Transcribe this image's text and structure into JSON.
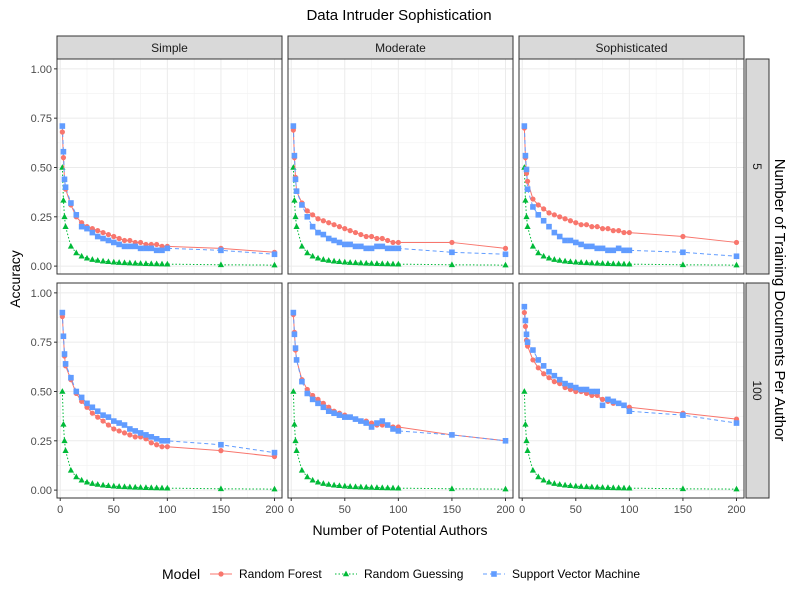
{
  "chart_data": {
    "type": "line",
    "title": "Data Intruder Sophistication",
    "xlabel": "Number of Potential Authors",
    "ylabel": "Accuracy",
    "facet_col_label": "",
    "facet_row_label": "Number of Training Documents Per Author",
    "columns": [
      "Simple",
      "Moderate",
      "Sophisticated"
    ],
    "rows": [
      "5",
      "100"
    ],
    "xlim": [
      -3,
      207
    ],
    "ylim": [
      -0.04,
      1.05
    ],
    "xticks": [
      0,
      50,
      100,
      150,
      200
    ],
    "yticks": [
      0.0,
      0.25,
      0.5,
      0.75,
      1.0
    ],
    "ytick_labels": [
      "0.00",
      "0.25",
      "0.50",
      "0.75",
      "1.00"
    ],
    "grid": true,
    "legend": {
      "title": "Model",
      "position": "bottom",
      "entries": [
        "Random Forest",
        "Random Guessing",
        "Support Vector Machine"
      ]
    },
    "colors": {
      "Random Forest": "#F8766D",
      "Random Guessing": "#00BA38",
      "Support Vector Machine": "#619CFF"
    },
    "x": [
      2,
      3,
      4,
      5,
      10,
      15,
      20,
      25,
      30,
      35,
      40,
      45,
      50,
      55,
      60,
      65,
      70,
      75,
      80,
      85,
      90,
      95,
      100,
      150,
      200
    ],
    "panels": [
      {
        "row": "5",
        "col": "Simple",
        "series": [
          {
            "name": "Random Forest",
            "values": [
              0.68,
              0.55,
              0.44,
              0.39,
              0.31,
              0.25,
              0.22,
              0.2,
              0.19,
              0.18,
              0.17,
              0.16,
              0.15,
              0.14,
              0.13,
              0.13,
              0.12,
              0.12,
              0.11,
              0.11,
              0.11,
              0.1,
              0.1,
              0.09,
              0.07
            ]
          },
          {
            "name": "Support Vector Machine",
            "values": [
              0.71,
              0.58,
              0.44,
              0.4,
              0.32,
              0.26,
              0.2,
              0.19,
              0.17,
              0.15,
              0.14,
              0.13,
              0.12,
              0.11,
              0.1,
              0.1,
              0.1,
              0.09,
              0.09,
              0.09,
              0.08,
              0.08,
              0.09,
              0.08,
              0.06
            ]
          }
        ]
      },
      {
        "row": "5",
        "col": "Moderate",
        "series": [
          {
            "name": "Random Forest",
            "values": [
              0.69,
              0.55,
              0.45,
              0.38,
              0.32,
              0.28,
              0.26,
              0.24,
              0.23,
              0.22,
              0.21,
              0.2,
              0.19,
              0.18,
              0.17,
              0.16,
              0.15,
              0.15,
              0.14,
              0.14,
              0.13,
              0.12,
              0.12,
              0.12,
              0.09
            ]
          },
          {
            "name": "Support Vector Machine",
            "values": [
              0.71,
              0.56,
              0.44,
              0.38,
              0.31,
              0.25,
              0.2,
              0.17,
              0.16,
              0.14,
              0.13,
              0.12,
              0.11,
              0.11,
              0.1,
              0.1,
              0.09,
              0.09,
              0.1,
              0.1,
              0.09,
              0.09,
              0.09,
              0.07,
              0.06
            ]
          }
        ]
      },
      {
        "row": "5",
        "col": "Sophisticated",
        "series": [
          {
            "name": "Random Forest",
            "values": [
              0.7,
              0.55,
              0.47,
              0.43,
              0.34,
              0.31,
              0.29,
              0.27,
              0.26,
              0.25,
              0.24,
              0.23,
              0.22,
              0.21,
              0.21,
              0.2,
              0.2,
              0.19,
              0.19,
              0.18,
              0.18,
              0.17,
              0.17,
              0.15,
              0.12
            ]
          },
          {
            "name": "Support Vector Machine",
            "values": [
              0.71,
              0.56,
              0.49,
              0.39,
              0.3,
              0.26,
              0.23,
              0.2,
              0.17,
              0.15,
              0.13,
              0.13,
              0.12,
              0.11,
              0.1,
              0.1,
              0.09,
              0.09,
              0.08,
              0.08,
              0.09,
              0.08,
              0.08,
              0.07,
              0.05
            ]
          }
        ]
      },
      {
        "row": "100",
        "col": "Simple",
        "series": [
          {
            "name": "Random Forest",
            "values": [
              0.88,
              0.78,
              0.68,
              0.63,
              0.56,
              0.49,
              0.45,
              0.42,
              0.39,
              0.37,
              0.35,
              0.33,
              0.31,
              0.3,
              0.29,
              0.28,
              0.27,
              0.27,
              0.26,
              0.24,
              0.23,
              0.22,
              0.22,
              0.2,
              0.17
            ]
          },
          {
            "name": "Support Vector Machine",
            "values": [
              0.9,
              0.78,
              0.69,
              0.64,
              0.57,
              0.5,
              0.47,
              0.44,
              0.42,
              0.4,
              0.38,
              0.37,
              0.35,
              0.34,
              0.33,
              0.31,
              0.3,
              0.29,
              0.28,
              0.27,
              0.26,
              0.25,
              0.25,
              0.23,
              0.19
            ]
          }
        ]
      },
      {
        "row": "100",
        "col": "Moderate",
        "series": [
          {
            "name": "Random Forest",
            "values": [
              0.89,
              0.8,
              0.71,
              0.66,
              0.56,
              0.51,
              0.48,
              0.46,
              0.44,
              0.42,
              0.4,
              0.39,
              0.38,
              0.37,
              0.36,
              0.35,
              0.35,
              0.34,
              0.33,
              0.33,
              0.33,
              0.32,
              0.32,
              0.28,
              0.25
            ]
          },
          {
            "name": "Support Vector Machine",
            "values": [
              0.9,
              0.79,
              0.72,
              0.66,
              0.55,
              0.49,
              0.46,
              0.44,
              0.42,
              0.4,
              0.39,
              0.38,
              0.37,
              0.37,
              0.36,
              0.35,
              0.34,
              0.32,
              0.34,
              0.35,
              0.33,
              0.31,
              0.3,
              0.28,
              0.25
            ]
          }
        ]
      },
      {
        "row": "100",
        "col": "Sophisticated",
        "series": [
          {
            "name": "Random Forest",
            "values": [
              0.9,
              0.83,
              0.76,
              0.73,
              0.66,
              0.62,
              0.59,
              0.57,
              0.55,
              0.54,
              0.52,
              0.51,
              0.5,
              0.5,
              0.49,
              0.48,
              0.48,
              0.46,
              0.45,
              0.44,
              0.44,
              0.43,
              0.42,
              0.39,
              0.36
            ]
          },
          {
            "name": "Support Vector Machine",
            "values": [
              0.93,
              0.86,
              0.79,
              0.75,
              0.71,
              0.66,
              0.63,
              0.6,
              0.58,
              0.56,
              0.54,
              0.53,
              0.52,
              0.51,
              0.51,
              0.5,
              0.5,
              0.43,
              0.46,
              0.45,
              0.44,
              0.43,
              0.4,
              0.38,
              0.34
            ]
          }
        ]
      }
    ],
    "random_guessing_rule": "1 / x"
  }
}
